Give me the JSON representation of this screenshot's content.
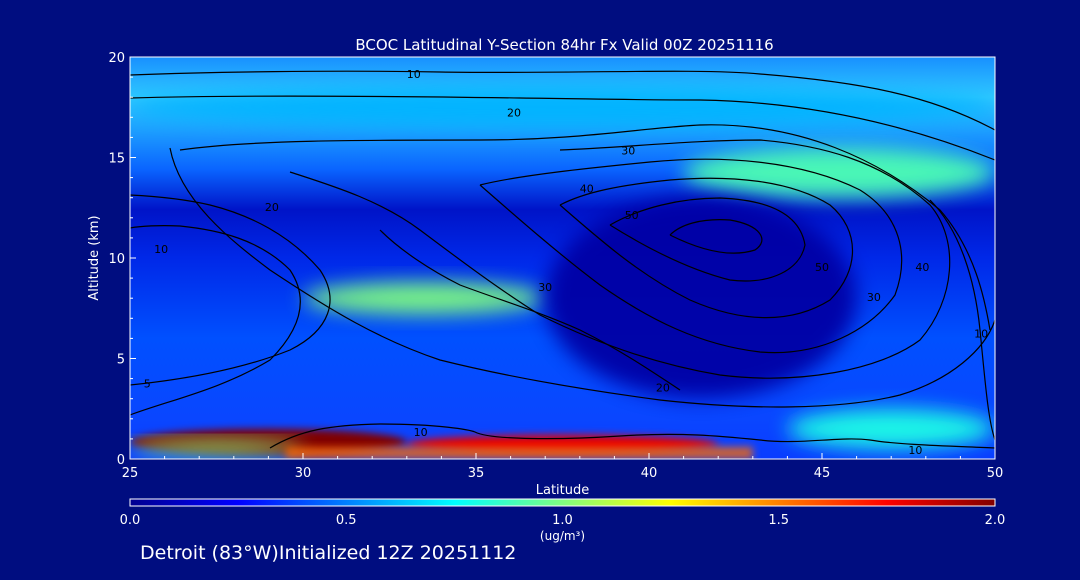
{
  "chart_data": {
    "type": "heatmap",
    "title": "BCOC Latitudinal Y-Section 84hr  Fx Valid 00Z 20251116",
    "xlabel": "Latitude",
    "ylabel": "Altitude (km)",
    "xlim": [
      25,
      50
    ],
    "ylim": [
      0,
      20
    ],
    "x_ticks": [
      "25",
      "30",
      "35",
      "40",
      "45",
      "50"
    ],
    "y_ticks": [
      "0",
      "5",
      "10",
      "15",
      "20"
    ],
    "colorbar": {
      "ticks": [
        "0.0",
        "0.5",
        "1.0",
        "1.5",
        "2.0"
      ],
      "range": [
        0,
        2
      ],
      "unit": "(ug/m³)",
      "orientation": "horizontal"
    },
    "colormap": [
      "#00008f",
      "#0000ff",
      "#0080ff",
      "#00ffff",
      "#80ff80",
      "#ffff00",
      "#ff8000",
      "#ff0000",
      "#800000"
    ],
    "field": [
      {
        "lat": [
          25,
          33
        ],
        "alt": [
          0.2,
          1.5
        ],
        "value": 2.0
      },
      {
        "lat": [
          33,
          42
        ],
        "alt": [
          0.3,
          1.2
        ],
        "value": 1.8
      },
      {
        "lat": [
          25,
          30
        ],
        "alt": [
          0.2,
          0.9
        ],
        "value": 1.0
      },
      {
        "lat": [
          30,
          37
        ],
        "alt": [
          7.2,
          8.8
        ],
        "value": 1.0
      },
      {
        "lat": [
          41,
          50
        ],
        "alt": [
          13.0,
          15.5
        ],
        "value": 0.9
      },
      {
        "lat": [
          25,
          50
        ],
        "alt": [
          16.5,
          18.5
        ],
        "value": 0.6
      },
      {
        "lat": [
          44,
          50
        ],
        "alt": [
          0.5,
          2.5
        ],
        "value": 0.8
      },
      {
        "lat": [
          37,
          46
        ],
        "alt": [
          3,
          13
        ],
        "value": 0.05
      }
    ],
    "contours": {
      "levels": [
        10,
        20,
        30,
        40,
        50
      ],
      "labels": [
        {
          "text": "10",
          "lat": 25.9,
          "alt": 10.4
        },
        {
          "text": "10",
          "lat": 33.4,
          "alt": 1.3
        },
        {
          "text": "10",
          "lat": 47.7,
          "alt": 0.4
        },
        {
          "text": "10",
          "lat": 33.2,
          "alt": 19.1
        },
        {
          "text": "10",
          "lat": 49.6,
          "alt": 6.2
        },
        {
          "text": "20",
          "lat": 29.1,
          "alt": 12.5
        },
        {
          "text": "20",
          "lat": 36.1,
          "alt": 17.2
        },
        {
          "text": "20",
          "lat": 40.4,
          "alt": 3.5
        },
        {
          "text": "30",
          "lat": 37.0,
          "alt": 8.5
        },
        {
          "text": "30",
          "lat": 39.4,
          "alt": 15.3
        },
        {
          "text": "30",
          "lat": 46.5,
          "alt": 8.0
        },
        {
          "text": "40",
          "lat": 38.2,
          "alt": 13.4
        },
        {
          "text": "40",
          "lat": 47.9,
          "alt": 9.5
        },
        {
          "text": "50",
          "lat": 39.5,
          "alt": 12.1
        },
        {
          "text": "50",
          "lat": 45.0,
          "alt": 9.5
        },
        {
          "text": "5",
          "lat": 25.5,
          "alt": 3.7
        }
      ]
    }
  },
  "footer": {
    "text": "Detroit (83°W)Initialized 12Z 20251112"
  }
}
